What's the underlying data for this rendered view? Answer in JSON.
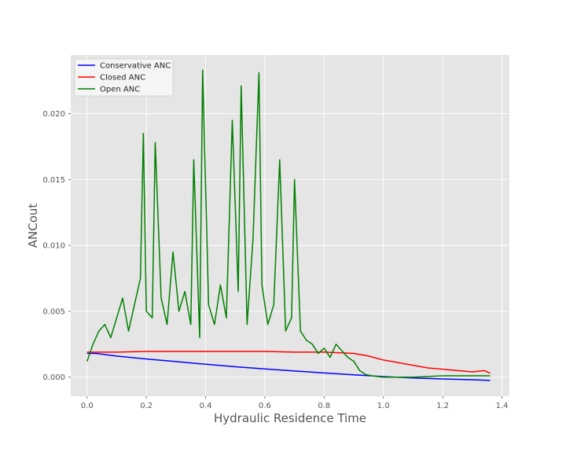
{
  "chart_data": {
    "type": "line",
    "title": "",
    "xlabel": "Hydraulic Residence Time",
    "ylabel": "ANCout",
    "xlim": [
      -0.055,
      1.425
    ],
    "ylim": [
      -0.00145,
      0.02445
    ],
    "xticks": [
      "0.0",
      "0.2",
      "0.4",
      "0.6",
      "0.8",
      "1.0",
      "1.2",
      "1.4"
    ],
    "xtick_values": [
      0.0,
      0.2,
      0.4,
      0.6,
      0.8,
      1.0,
      1.2,
      1.4
    ],
    "yticks": [
      "0.000",
      "0.005",
      "0.010",
      "0.015",
      "0.020"
    ],
    "ytick_values": [
      0.0,
      0.005,
      0.01,
      0.015,
      0.02
    ],
    "grid": true,
    "legend": "top-left",
    "series": [
      {
        "name": "Conservative ANC",
        "color": "#0000ff",
        "x": [
          0.0,
          0.03,
          0.1,
          0.2,
          0.3,
          0.4,
          0.5,
          0.6,
          0.7,
          0.8,
          0.9,
          1.0,
          1.1,
          1.2,
          1.3,
          1.36
        ],
        "y": [
          0.0018,
          0.0018,
          0.0016,
          0.00138,
          0.00118,
          0.00098,
          0.00079,
          0.00062,
          0.00047,
          0.00032,
          0.00018,
          4e-05,
          -6e-05,
          -0.00014,
          -0.0002,
          -0.00025
        ]
      },
      {
        "name": "Closed ANC",
        "color": "#ff0000",
        "x": [
          0.0,
          0.05,
          0.1,
          0.2,
          0.3,
          0.4,
          0.5,
          0.6,
          0.7,
          0.8,
          0.9,
          0.95,
          1.0,
          1.05,
          1.1,
          1.15,
          1.2,
          1.25,
          1.3,
          1.34,
          1.36
        ],
        "y": [
          0.0019,
          0.0019,
          0.0019,
          0.00195,
          0.00195,
          0.00195,
          0.00195,
          0.00195,
          0.0019,
          0.0019,
          0.0018,
          0.0016,
          0.0013,
          0.0011,
          0.0009,
          0.0007,
          0.0006,
          0.0005,
          0.0004,
          0.0005,
          0.0003
        ]
      },
      {
        "name": "Open ANC",
        "color": "#008000",
        "x": [
          0.0,
          0.02,
          0.04,
          0.06,
          0.08,
          0.1,
          0.12,
          0.14,
          0.16,
          0.18,
          0.19,
          0.2,
          0.22,
          0.23,
          0.25,
          0.27,
          0.29,
          0.31,
          0.33,
          0.35,
          0.36,
          0.38,
          0.39,
          0.41,
          0.43,
          0.45,
          0.47,
          0.49,
          0.51,
          0.52,
          0.54,
          0.56,
          0.58,
          0.59,
          0.61,
          0.63,
          0.65,
          0.67,
          0.69,
          0.7,
          0.72,
          0.74,
          0.76,
          0.78,
          0.8,
          0.82,
          0.84,
          0.86,
          0.88,
          0.9,
          0.92,
          0.94,
          0.96,
          1.0,
          1.1,
          1.2,
          1.3,
          1.36
        ],
        "y": [
          0.0012,
          0.0025,
          0.0035,
          0.004,
          0.003,
          0.0045,
          0.006,
          0.0035,
          0.0055,
          0.0075,
          0.0185,
          0.005,
          0.0045,
          0.0178,
          0.006,
          0.004,
          0.0095,
          0.005,
          0.0065,
          0.004,
          0.0165,
          0.003,
          0.0233,
          0.0055,
          0.004,
          0.007,
          0.0045,
          0.0195,
          0.0065,
          0.0221,
          0.004,
          0.0105,
          0.0231,
          0.007,
          0.004,
          0.0055,
          0.0165,
          0.0035,
          0.0045,
          0.015,
          0.0035,
          0.0028,
          0.0025,
          0.0018,
          0.0022,
          0.0015,
          0.0025,
          0.002,
          0.0015,
          0.0012,
          0.0005,
          0.0002,
          0.0001,
          0.0,
          0.0,
          0.0001,
          0.0001,
          0.0001
        ]
      }
    ]
  }
}
